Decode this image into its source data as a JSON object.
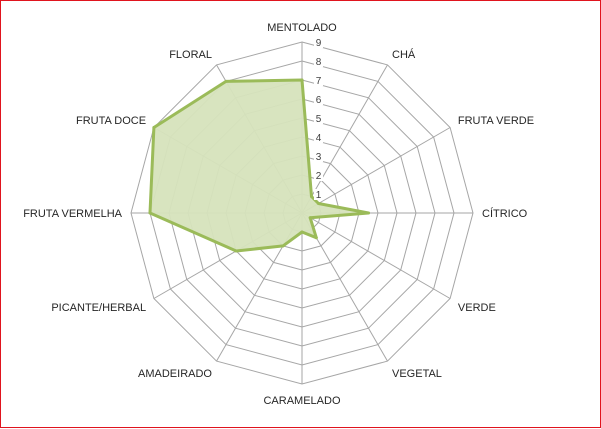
{
  "chart_data": {
    "type": "radar",
    "title": "",
    "categories": [
      "MENTOLADO",
      "CHÁ",
      "FRUTA VERDE",
      "CÍTRICO",
      "VERDE",
      "VEGETAL",
      "CARAMELADO",
      "AMADEIRADO",
      "PICANTE/HERBAL",
      "FRUTA VERMELHA",
      "FRUTA DOCE",
      "FLORAL"
    ],
    "series": [
      {
        "values": [
          7,
          1,
          1,
          3.5,
          0.5,
          1.5,
          1,
          2,
          4,
          8,
          9,
          8
        ],
        "color": "#9bbb59",
        "fill": "#d6e3bc"
      }
    ],
    "rmin": 0,
    "rmax": 9,
    "ticks": [
      "1",
      "2",
      "3",
      "4",
      "5",
      "6",
      "7",
      "8",
      "9"
    ],
    "grid": true,
    "legend": "none"
  },
  "colors": {
    "grid": "#a6a6a6",
    "frame": "#e0141e"
  }
}
